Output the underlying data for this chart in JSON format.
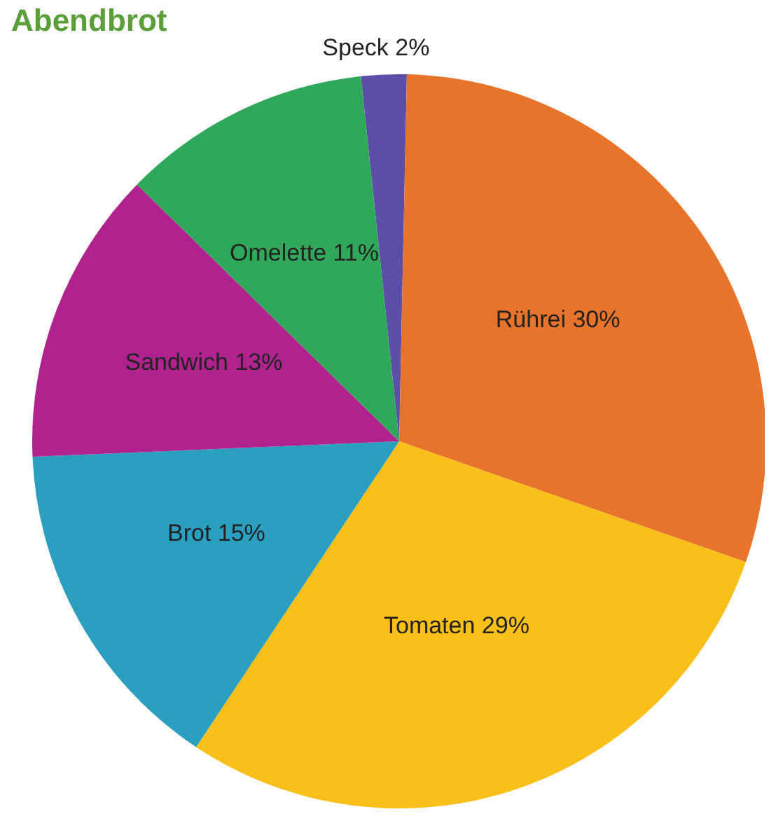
{
  "chart_data": {
    "type": "pie",
    "title": "Abendbrot",
    "categories": [
      "Speck",
      "Rührei",
      "Tomaten",
      "Brot",
      "Sandwich",
      "Omelette"
    ],
    "values": [
      2,
      30,
      29,
      15,
      13,
      11
    ],
    "value_labels": [
      "2%",
      "30%",
      "29%",
      "15%",
      "13%",
      "11%"
    ],
    "colors": [
      "#5b4fa8",
      "#e8732a",
      "#fbbf1a",
      "#2a9fc0",
      "#b0238f",
      "#2fa85a"
    ]
  }
}
